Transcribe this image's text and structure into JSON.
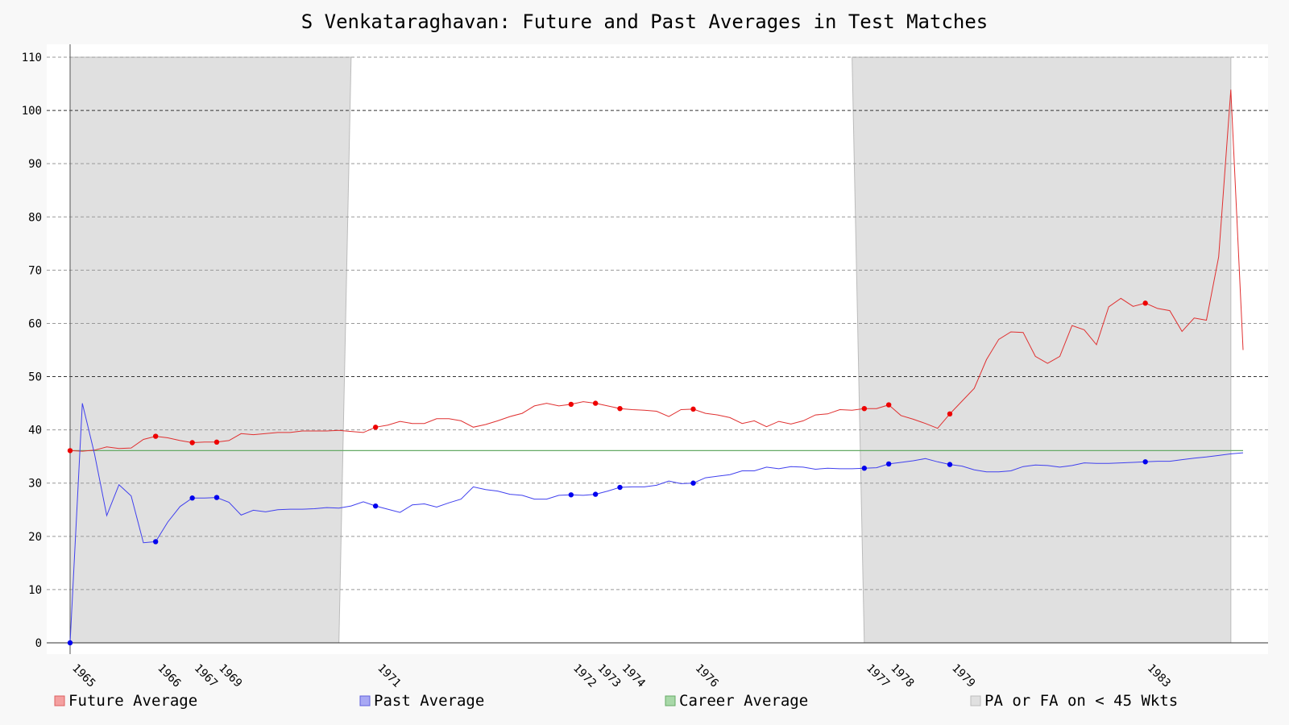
{
  "chart_data": {
    "type": "line",
    "title": "S Venkataraghavan: Future and Past Averages in Test Matches",
    "xlabel": "",
    "ylabel": "",
    "ylim": [
      0,
      110
    ],
    "y_ticks": [
      0,
      10,
      20,
      30,
      40,
      50,
      60,
      70,
      80,
      90,
      100,
      110
    ],
    "grid": true,
    "legend_position": "bottom",
    "x_tick_labels": [
      {
        "label": "1965",
        "match": 0
      },
      {
        "label": "1966",
        "match": 7
      },
      {
        "label": "1967",
        "match": 10
      },
      {
        "label": "1969",
        "match": 12
      },
      {
        "label": "1971",
        "match": 25
      },
      {
        "label": "1972",
        "match": 41
      },
      {
        "label": "1973",
        "match": 43
      },
      {
        "label": "1974",
        "match": 45
      },
      {
        "label": "1976",
        "match": 51
      },
      {
        "label": "1977",
        "match": 65
      },
      {
        "label": "1978",
        "match": 67
      },
      {
        "label": "1979",
        "match": 72
      },
      {
        "label": "1983",
        "match": 88
      }
    ],
    "series": [
      {
        "name": "Future Average",
        "color": "#e03030",
        "marker_color": "#ee0000",
        "values": [
          36.1,
          36.0,
          36.2,
          36.8,
          36.5,
          36.6,
          38.2,
          38.8,
          38.5,
          38.0,
          37.6,
          37.7,
          37.7,
          38.0,
          39.3,
          39.1,
          39.3,
          39.5,
          39.5,
          39.8,
          39.8,
          39.8,
          39.9,
          39.7,
          39.5,
          40.5,
          40.9,
          41.6,
          41.2,
          41.2,
          42.1,
          42.1,
          41.7,
          40.5,
          41.0,
          41.7,
          42.5,
          43.1,
          44.5,
          45.0,
          44.5,
          44.8,
          45.3,
          45.0,
          44.5,
          44.0,
          43.8,
          43.7,
          43.5,
          42.5,
          43.8,
          43.9,
          43.1,
          42.8,
          42.3,
          41.2,
          41.7,
          40.6,
          41.6,
          41.1,
          41.7,
          42.8,
          43.0,
          43.8,
          43.7,
          44.0,
          44.0,
          44.7,
          42.7,
          42.0,
          41.2,
          40.3,
          43.0,
          45.4,
          47.8,
          53.2,
          57.0,
          58.4,
          58.3,
          53.8,
          52.5,
          53.8,
          59.6,
          58.8,
          56.0,
          63.1,
          64.7,
          63.2,
          63.8,
          62.8,
          62.4,
          58.5,
          61.0,
          60.6,
          72.5,
          103.9,
          55.0
        ]
      },
      {
        "name": "Past Average",
        "color": "#4040ee",
        "marker_color": "#0000ee",
        "values": [
          0,
          45.0,
          35.5,
          23.9,
          29.7,
          27.6,
          18.8,
          19.0,
          22.7,
          25.6,
          27.2,
          27.2,
          27.3,
          26.4,
          24.0,
          24.9,
          24.6,
          25.0,
          25.1,
          25.1,
          25.2,
          25.4,
          25.3,
          25.7,
          26.5,
          25.7,
          25.1,
          24.5,
          25.9,
          26.1,
          25.5,
          26.3,
          27.0,
          29.3,
          28.8,
          28.5,
          27.9,
          27.7,
          27.0,
          27.0,
          27.7,
          27.8,
          27.7,
          27.9,
          28.5,
          29.2,
          29.3,
          29.3,
          29.6,
          30.4,
          29.9,
          30.0,
          31.0,
          31.3,
          31.6,
          32.3,
          32.3,
          33.0,
          32.7,
          33.1,
          33.0,
          32.6,
          32.8,
          32.7,
          32.7,
          32.8,
          32.9,
          33.6,
          33.9,
          34.2,
          34.6,
          34.0,
          33.5,
          33.2,
          32.5,
          32.1,
          32.1,
          32.3,
          33.1,
          33.4,
          33.3,
          33.0,
          33.3,
          33.8,
          33.7,
          33.7,
          33.8,
          33.9,
          34.0,
          34.1,
          34.1,
          34.4,
          34.7,
          34.9,
          35.2,
          35.5,
          35.7
        ]
      },
      {
        "name": "Career Average",
        "color": "#66aa66",
        "values": [
          36.1,
          36.1
        ]
      }
    ],
    "marked_matches": [
      0,
      7,
      10,
      12,
      25,
      41,
      43,
      45,
      51,
      65,
      67,
      72,
      88
    ],
    "shaded_region": {
      "name": "PA or FA on < 45 Wkts",
      "color": "#e0e0e0",
      "regions": [
        {
          "x_top": [
            0,
            23
          ],
          "x_bottom": [
            0,
            22
          ]
        },
        {
          "x_top": [
            64,
            95
          ],
          "x_bottom": [
            65,
            95
          ]
        }
      ]
    },
    "legend": [
      {
        "label": "Future Average",
        "swatch": "#f4a0a0",
        "border": "#dd6060"
      },
      {
        "label": "Past Average",
        "swatch": "#a8a8f4",
        "border": "#6060dd"
      },
      {
        "label": "Career Average",
        "swatch": "#a8d8a8",
        "border": "#66aa66"
      },
      {
        "label": "PA or FA on < 45 Wkts",
        "swatch": "#e0e0e0",
        "border": "#bbbbbb"
      }
    ]
  }
}
